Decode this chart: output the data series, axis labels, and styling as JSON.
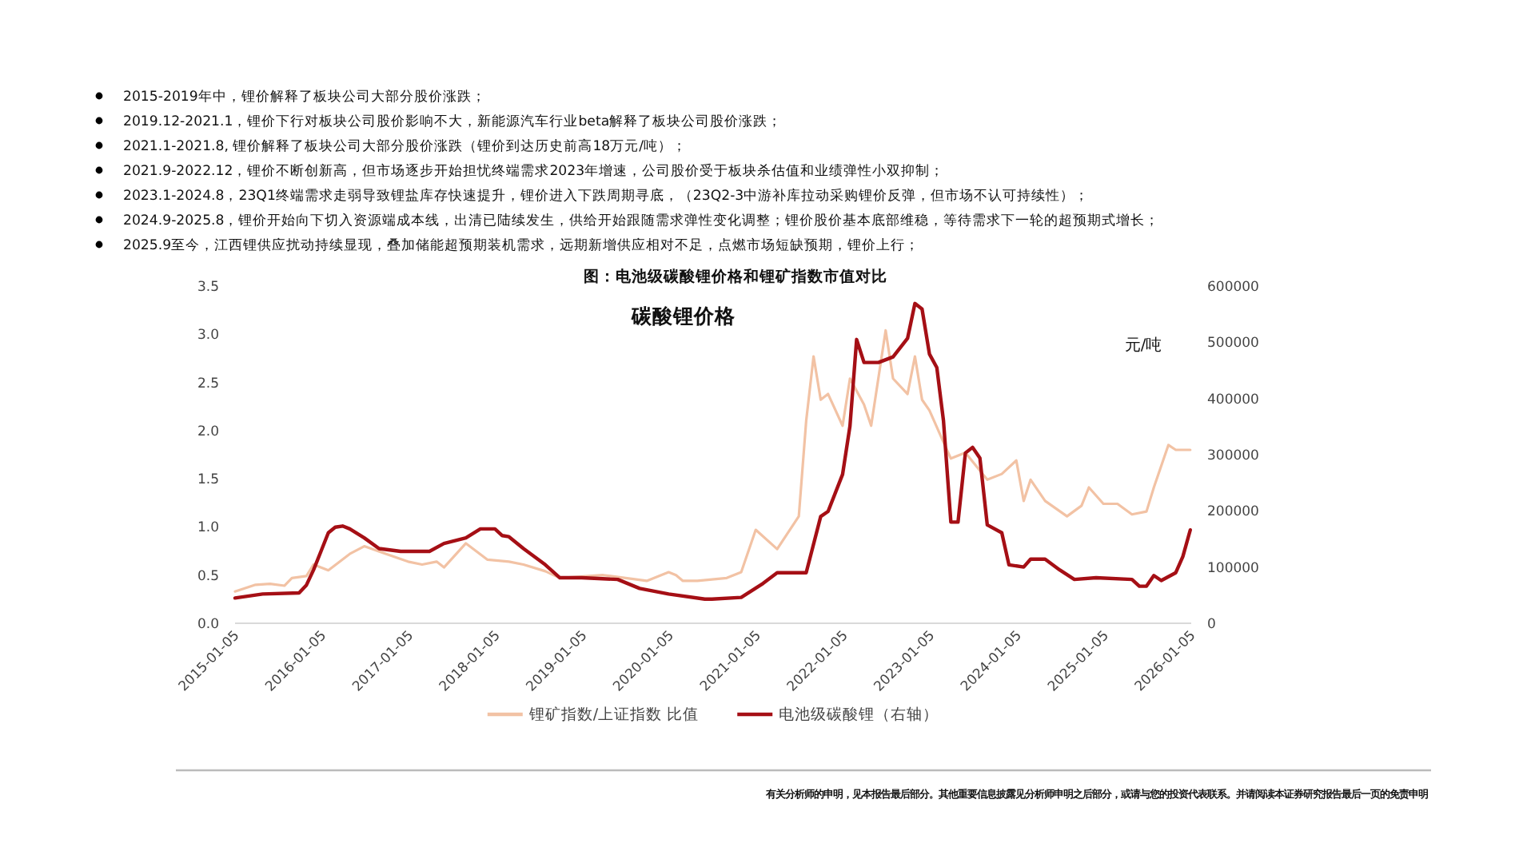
{
  "chart_data": {
    "type": "line",
    "title": "图：电池级碳酸锂价格和锂矿指数市值对比",
    "y2label": "元/吨",
    "annotations": [
      "2015-2019年中，锂价解释了板块公司大部分股价涨跌；",
      "2019.12-2021.1，锂价下行对板块公司股价影响不大，新能源汽车行业beta解释了板块公司股价涨跌；",
      "2021.1-2021.8, 锂价解释了板块公司大部分股价涨跌（锂价到达历史前高18万元/吨）；",
      "2021.9-2022.12，锂价不断创新高，但市场逐步开始担忧终端需求2023年增速，公司股价受于板块杀估值和业绩弹性小双抑制；",
      "2023.1-2024.8，23Q1终端需求走弱导致锂盐库存快速提升，锂价进入下跌周期寻底，（23Q2-3中游补库拉动采购锂价反弹，但市场不认可持续性）；",
      "2024.9-2025.8，锂价开始向下切入资源端成本线，出清已陆续发生，供给开始跟随需求弹性变化调整；锂价股价基本底部维稳，等待需求下一轮的超预期式增长；",
      "2025.9至今，江西锂供应扰动持续显现，叠加储能超预期装机需求，远期新增供应相对不足，点燃市场短缺预期，锂价上行；",
      "碳酸锂价格",
      "有关分析师的申明，见本报告最后部分。其他重要信息披露见分析师申明之后部分，或请与您的投资代表联系。并请阅读本证券研究报告最后一页的免责申明"
    ],
    "xlim": [
      "2015-01-05",
      "2026-01-05"
    ],
    "xticks": [
      "2015-01-05",
      "2016-01-05",
      "2017-01-05",
      "2018-01-05",
      "2019-01-05",
      "2020-01-05",
      "2021-01-05",
      "2022-01-05",
      "2023-01-05",
      "2024-01-05",
      "2025-01-05",
      "2026-01-05"
    ],
    "ylim": [
      0,
      3.5
    ],
    "yticks": [
      {
        "value": 0,
        "label": "0.0"
      },
      0.5,
      {
        "value": 1,
        "label": "1.0"
      },
      1.5,
      {
        "value": 2,
        "label": "2.0"
      },
      2.5,
      {
        "value": 3,
        "label": "3.0"
      },
      3.5
    ],
    "y2lim": [
      0,
      600000
    ],
    "y2ticks": [
      0,
      100000,
      200000,
      300000,
      400000,
      500000,
      600000
    ],
    "legend": "bottom",
    "marker": "none",
    "line_style": "solid",
    "series": [
      {
        "name": "锂矿指数/上证指数 比值",
        "color": "#f2c2a4",
        "x": [
          "2015-01-05",
          "2015-04",
          "2015-06",
          "2015-08",
          "2015-09",
          "2015-11",
          "2015-12",
          "2016-02",
          "2016-05",
          "2016-07",
          "2016-10",
          "2017-01",
          "2017-03",
          "2017-05",
          "2017-06",
          "2017-09",
          "2017-12",
          "2018-03",
          "2018-05",
          "2018-08",
          "2018-10",
          "2019-04",
          "2019-10",
          "2020-01",
          "2020-02",
          "2020-03",
          "2020-05",
          "2020-09",
          "2020-11",
          "2021-01",
          "2021-04",
          "2021-07",
          "2021-08",
          "2021-09",
          "2021-10",
          "2021-11",
          "2022-01",
          "2022-02",
          "2022-04",
          "2022-05",
          "2022-07",
          "2022-08",
          "2022-10",
          "2022-11",
          "2022-12",
          "2023-01",
          "2023-03",
          "2023-04",
          "2023-06",
          "2023-09",
          "2023-11",
          "2024-01",
          "2024-02",
          "2024-03",
          "2024-05",
          "2024-08",
          "2024-10",
          "2024-11",
          "2025-01",
          "2025-03",
          "2025-05",
          "2025-07",
          "2025-08",
          "2025-10",
          "2025-11",
          "2026-01"
        ],
        "values": [
          0.33,
          0.4,
          0.41,
          0.39,
          0.47,
          0.49,
          0.61,
          0.55,
          0.72,
          0.8,
          0.72,
          0.64,
          0.61,
          0.64,
          0.58,
          0.83,
          0.66,
          0.64,
          0.61,
          0.54,
          0.47,
          0.5,
          0.44,
          0.53,
          0.5,
          0.44,
          0.44,
          0.47,
          0.53,
          0.97,
          0.77,
          1.11,
          2.1,
          2.77,
          2.32,
          2.38,
          2.05,
          2.54,
          2.27,
          2.05,
          3.04,
          2.54,
          2.38,
          2.77,
          2.32,
          2.21,
          1.88,
          1.71,
          1.77,
          1.49,
          1.55,
          1.69,
          1.27,
          1.49,
          1.27,
          1.11,
          1.22,
          1.41,
          1.24,
          1.24,
          1.13,
          1.16,
          1.41,
          1.85,
          1.8,
          1.8
        ]
      },
      {
        "name": "电池级碳酸锂（右轴）",
        "color": "#a50f15",
        "axis": "y2",
        "x": [
          "2015-01-05",
          "2015-05",
          "2015-10",
          "2015-11",
          "2015-12",
          "2016-01",
          "2016-02",
          "2016-03",
          "2016-04",
          "2016-05",
          "2016-07",
          "2016-09",
          "2016-12",
          "2017-04",
          "2017-06",
          "2017-09",
          "2017-11",
          "2018-01",
          "2018-02",
          "2018-03",
          "2018-05",
          "2018-08",
          "2018-10",
          "2019-01",
          "2019-06",
          "2019-09",
          "2020-01",
          "2020-06",
          "2020-07",
          "2020-11",
          "2021-02",
          "2021-04",
          "2021-08",
          "2021-10",
          "2021-11",
          "2022-01",
          "2022-02",
          "2022-03",
          "2022-04",
          "2022-06",
          "2022-08",
          "2022-10",
          "2022-11",
          "2022-12",
          "2023-01",
          "2023-02",
          "2023-03",
          "2023-04",
          "2023-05",
          "2023-06",
          "2023-07",
          "2023-08",
          "2023-09",
          "2023-11",
          "2023-12",
          "2024-02",
          "2024-03",
          "2024-05",
          "2024-07",
          "2024-09",
          "2024-12",
          "2025-05",
          "2025-06",
          "2025-07",
          "2025-08",
          "2025-09",
          "2025-11",
          "2025-12",
          "2026-01"
        ],
        "values": [
          45000,
          52000,
          54000,
          68000,
          95000,
          128000,
          161000,
          171000,
          173000,
          168000,
          152000,
          133000,
          128000,
          128000,
          142000,
          152000,
          168000,
          168000,
          156000,
          154000,
          133000,
          104000,
          81000,
          81000,
          78000,
          62000,
          52000,
          43000,
          43000,
          46000,
          71000,
          90000,
          90000,
          190000,
          199000,
          265000,
          351000,
          505000,
          464000,
          464000,
          474000,
          507000,
          569000,
          559000,
          479000,
          455000,
          360000,
          180000,
          180000,
          303000,
          313000,
          294000,
          175000,
          161000,
          104000,
          100000,
          114000,
          114000,
          95000,
          78000,
          81000,
          78000,
          66000,
          66000,
          85000,
          76000,
          90000,
          119000,
          166000
        ]
      }
    ]
  }
}
